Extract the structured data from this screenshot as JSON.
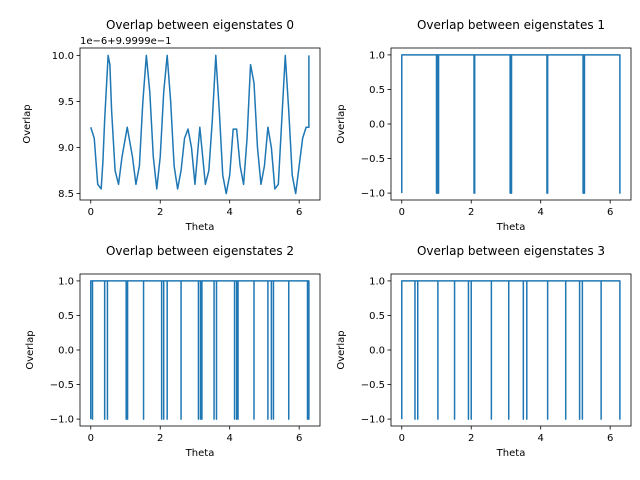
{
  "chart_data": [
    {
      "type": "line",
      "title": "Overlap between eigenstates 0",
      "xlabel": "Theta",
      "ylabel": "Overlap",
      "offset_text": "1e−6+9.9999e−1",
      "xlim": [
        -0.31,
        6.6
      ],
      "ylim": [
        8.43,
        10.08
      ],
      "xticks": [
        0,
        2,
        4,
        6
      ],
      "xtick_labels": [
        "0",
        "2",
        "4",
        "6"
      ],
      "yticks": [
        8.5,
        9.0,
        9.5,
        10.0
      ],
      "ytick_labels": [
        "8.5",
        "9.0",
        "9.5",
        "10.0"
      ],
      "y_unit_note": "values shown as (y − 0.99999)/1e−6",
      "series": [
        {
          "color": "#1f77b4",
          "x": [
            0.0,
            0.1,
            0.2,
            0.3,
            0.35,
            0.4,
            0.5,
            0.55,
            0.6,
            0.7,
            0.8,
            0.9,
            1.05,
            1.2,
            1.3,
            1.4,
            1.5,
            1.6,
            1.7,
            1.8,
            1.9,
            2.0,
            2.1,
            2.2,
            2.3,
            2.4,
            2.5,
            2.6,
            2.7,
            2.8,
            2.9,
            3.0,
            3.14,
            3.3,
            3.4,
            3.5,
            3.6,
            3.7,
            3.8,
            3.9,
            4.0,
            4.1,
            4.2,
            4.3,
            4.4,
            4.5,
            4.6,
            4.7,
            4.8,
            4.9,
            5.0,
            5.1,
            5.2,
            5.3,
            5.4,
            5.5,
            5.6,
            5.7,
            5.8,
            5.9,
            6.0,
            6.1,
            6.2,
            6.28,
            6.28
          ],
          "y": [
            9.22,
            9.1,
            8.6,
            8.55,
            8.85,
            9.3,
            10.0,
            9.9,
            9.4,
            8.75,
            8.6,
            8.9,
            9.22,
            8.9,
            8.6,
            8.8,
            9.5,
            10.0,
            9.6,
            8.9,
            8.55,
            8.9,
            9.6,
            10.0,
            9.5,
            8.8,
            8.55,
            8.75,
            9.1,
            9.2,
            9.0,
            8.6,
            9.22,
            8.6,
            8.75,
            9.3,
            10.0,
            9.4,
            8.7,
            8.5,
            8.7,
            9.2,
            9.2,
            8.8,
            8.6,
            9.1,
            9.9,
            9.7,
            9.0,
            8.6,
            8.8,
            9.22,
            9.0,
            8.55,
            8.6,
            9.3,
            10.0,
            9.4,
            8.7,
            8.5,
            8.8,
            9.1,
            9.22,
            9.22,
            10.0
          ]
        }
      ]
    },
    {
      "type": "line",
      "title": "Overlap between eigenstates 1",
      "xlabel": "Theta",
      "ylabel": "Overlap",
      "xlim": [
        -0.31,
        6.6
      ],
      "ylim": [
        -1.1,
        1.1
      ],
      "xticks": [
        0,
        2,
        4,
        6
      ],
      "xtick_labels": [
        "0",
        "2",
        "4",
        "6"
      ],
      "yticks": [
        -1.0,
        -0.5,
        0.0,
        0.5,
        1.0
      ],
      "ytick_labels": [
        "−1.0",
        "−0.5",
        "0.0",
        "0.5",
        "1.0"
      ],
      "series": [
        {
          "color": "#1f77b4",
          "high": 1.0,
          "low": -1.0,
          "drops_at": [
            0.0,
            1.0,
            1.02,
            1.04,
            1.06,
            2.08,
            2.1,
            3.12,
            3.14,
            3.16,
            4.18,
            4.2,
            5.22,
            5.24,
            5.26,
            6.28
          ]
        }
      ]
    },
    {
      "type": "line",
      "title": "Overlap between eigenstates 2",
      "xlabel": "Theta",
      "ylabel": "Overlap",
      "xlim": [
        -0.31,
        6.6
      ],
      "ylim": [
        -1.1,
        1.1
      ],
      "xticks": [
        0,
        2,
        4,
        6
      ],
      "xtick_labels": [
        "0",
        "2",
        "4",
        "6"
      ],
      "yticks": [
        -1.0,
        -0.5,
        0.0,
        0.5,
        1.0
      ],
      "ytick_labels": [
        "−1.0",
        "−0.5",
        "0.0",
        "0.5",
        "1.0"
      ],
      "series": [
        {
          "color": "#1f77b4",
          "high": 1.0,
          "low": -1.0,
          "drops_at": [
            0.0,
            0.05,
            0.4,
            0.48,
            1.02,
            1.06,
            1.52,
            2.04,
            2.1,
            2.2,
            2.6,
            3.1,
            3.16,
            3.2,
            3.55,
            3.62,
            4.14,
            4.2,
            4.24,
            4.7,
            5.1,
            5.2,
            5.26,
            5.7,
            6.24,
            6.28
          ]
        }
      ]
    },
    {
      "type": "line",
      "title": "Overlap between eigenstates 3",
      "xlabel": "Theta",
      "ylabel": "Overlap",
      "xlim": [
        -0.31,
        6.6
      ],
      "ylim": [
        -1.1,
        1.1
      ],
      "xticks": [
        0,
        2,
        4,
        6
      ],
      "xtick_labels": [
        "0",
        "2",
        "4",
        "6"
      ],
      "yticks": [
        -1.0,
        -0.5,
        0.0,
        0.5,
        1.0
      ],
      "ytick_labels": [
        "−1.0",
        "−0.5",
        "0.0",
        "0.5",
        "1.0"
      ],
      "series": [
        {
          "color": "#1f77b4",
          "high": 1.0,
          "low": -1.0,
          "drops_at": [
            0.0,
            0.38,
            0.46,
            1.04,
            1.52,
            1.92,
            2.0,
            2.58,
            3.08,
            3.5,
            3.6,
            4.2,
            4.72,
            5.12,
            5.2,
            5.74,
            6.28
          ]
        }
      ]
    }
  ]
}
